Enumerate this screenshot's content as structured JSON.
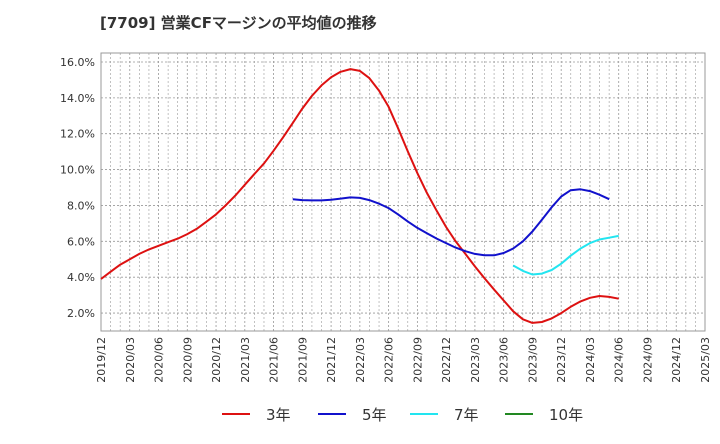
{
  "chart_data": {
    "type": "line",
    "title": "[7709]  営業CFマージンの平均値の推移",
    "xlabel": "",
    "ylabel": "",
    "x": [
      "2019/12",
      "2020/03",
      "2020/06",
      "2020/09",
      "2020/12",
      "2021/03",
      "2021/06",
      "2021/09",
      "2021/12",
      "2022/03",
      "2022/06",
      "2022/09",
      "2022/12",
      "2023/03",
      "2023/06",
      "2023/09",
      "2023/12",
      "2024/03",
      "2024/06",
      "2024/09",
      "2024/12",
      "2025/03"
    ],
    "xlim": [
      0,
      21
    ],
    "ylim": [
      1.0,
      16.5
    ],
    "yticks": [
      2.0,
      4.0,
      6.0,
      8.0,
      10.0,
      12.0,
      14.0,
      16.0
    ],
    "ytick_labels": [
      "2.0%",
      "4.0%",
      "6.0%",
      "8.0%",
      "10.0%",
      "12.0%",
      "14.0%",
      "16.0%"
    ],
    "grid": true,
    "legend_position": "bottom",
    "series": [
      {
        "name": "3年",
        "color": "#dd1111",
        "points": [
          [
            0,
            3.9
          ],
          [
            0.33,
            4.3
          ],
          [
            0.67,
            4.7
          ],
          [
            1,
            5.0
          ],
          [
            1.33,
            5.3
          ],
          [
            1.67,
            5.55
          ],
          [
            2,
            5.75
          ],
          [
            2.33,
            5.95
          ],
          [
            2.67,
            6.15
          ],
          [
            3,
            6.4
          ],
          [
            3.33,
            6.7
          ],
          [
            3.67,
            7.1
          ],
          [
            4,
            7.5
          ],
          [
            4.33,
            8.0
          ],
          [
            4.67,
            8.55
          ],
          [
            5,
            9.15
          ],
          [
            5.33,
            9.75
          ],
          [
            5.67,
            10.35
          ],
          [
            6,
            11.05
          ],
          [
            6.33,
            11.8
          ],
          [
            6.67,
            12.6
          ],
          [
            7,
            13.4
          ],
          [
            7.33,
            14.1
          ],
          [
            7.67,
            14.7
          ],
          [
            8,
            15.15
          ],
          [
            8.33,
            15.45
          ],
          [
            8.67,
            15.6
          ],
          [
            9,
            15.5
          ],
          [
            9.33,
            15.1
          ],
          [
            9.67,
            14.4
          ],
          [
            10,
            13.5
          ],
          [
            10.33,
            12.3
          ],
          [
            10.67,
            11.0
          ],
          [
            11,
            9.8
          ],
          [
            11.33,
            8.7
          ],
          [
            11.67,
            7.7
          ],
          [
            12,
            6.8
          ],
          [
            12.33,
            6.0
          ],
          [
            12.67,
            5.3
          ],
          [
            13,
            4.6
          ],
          [
            13.33,
            3.95
          ],
          [
            13.67,
            3.3
          ],
          [
            14,
            2.7
          ],
          [
            14.33,
            2.1
          ],
          [
            14.67,
            1.65
          ],
          [
            15,
            1.45
          ],
          [
            15.33,
            1.5
          ],
          [
            15.67,
            1.7
          ],
          [
            16,
            2.0
          ],
          [
            16.33,
            2.35
          ],
          [
            16.67,
            2.65
          ],
          [
            17,
            2.85
          ],
          [
            17.33,
            2.95
          ],
          [
            17.67,
            2.9
          ],
          [
            18,
            2.8
          ]
        ]
      },
      {
        "name": "5年",
        "color": "#1111cc",
        "points": [
          [
            6.67,
            8.35
          ],
          [
            7,
            8.3
          ],
          [
            7.33,
            8.28
          ],
          [
            7.67,
            8.28
          ],
          [
            8,
            8.32
          ],
          [
            8.33,
            8.38
          ],
          [
            8.67,
            8.45
          ],
          [
            9,
            8.42
          ],
          [
            9.33,
            8.3
          ],
          [
            9.67,
            8.1
          ],
          [
            10,
            7.85
          ],
          [
            10.33,
            7.5
          ],
          [
            10.67,
            7.1
          ],
          [
            11,
            6.75
          ],
          [
            11.33,
            6.45
          ],
          [
            11.67,
            6.15
          ],
          [
            12,
            5.9
          ],
          [
            12.33,
            5.65
          ],
          [
            12.67,
            5.45
          ],
          [
            13,
            5.3
          ],
          [
            13.33,
            5.22
          ],
          [
            13.67,
            5.22
          ],
          [
            14,
            5.35
          ],
          [
            14.33,
            5.6
          ],
          [
            14.67,
            6.0
          ],
          [
            15,
            6.55
          ],
          [
            15.33,
            7.2
          ],
          [
            15.67,
            7.9
          ],
          [
            16,
            8.5
          ],
          [
            16.33,
            8.85
          ],
          [
            16.67,
            8.9
          ],
          [
            17,
            8.8
          ],
          [
            17.33,
            8.6
          ],
          [
            17.67,
            8.35
          ]
        ]
      },
      {
        "name": "7年",
        "color": "#22e5f0",
        "points": [
          [
            14.33,
            4.65
          ],
          [
            14.67,
            4.35
          ],
          [
            15,
            4.15
          ],
          [
            15.33,
            4.2
          ],
          [
            15.67,
            4.4
          ],
          [
            16,
            4.75
          ],
          [
            16.33,
            5.2
          ],
          [
            16.67,
            5.6
          ],
          [
            17,
            5.9
          ],
          [
            17.33,
            6.1
          ],
          [
            17.67,
            6.2
          ],
          [
            18,
            6.3
          ]
        ]
      },
      {
        "name": "10年",
        "color": "#228822",
        "points": []
      }
    ]
  }
}
